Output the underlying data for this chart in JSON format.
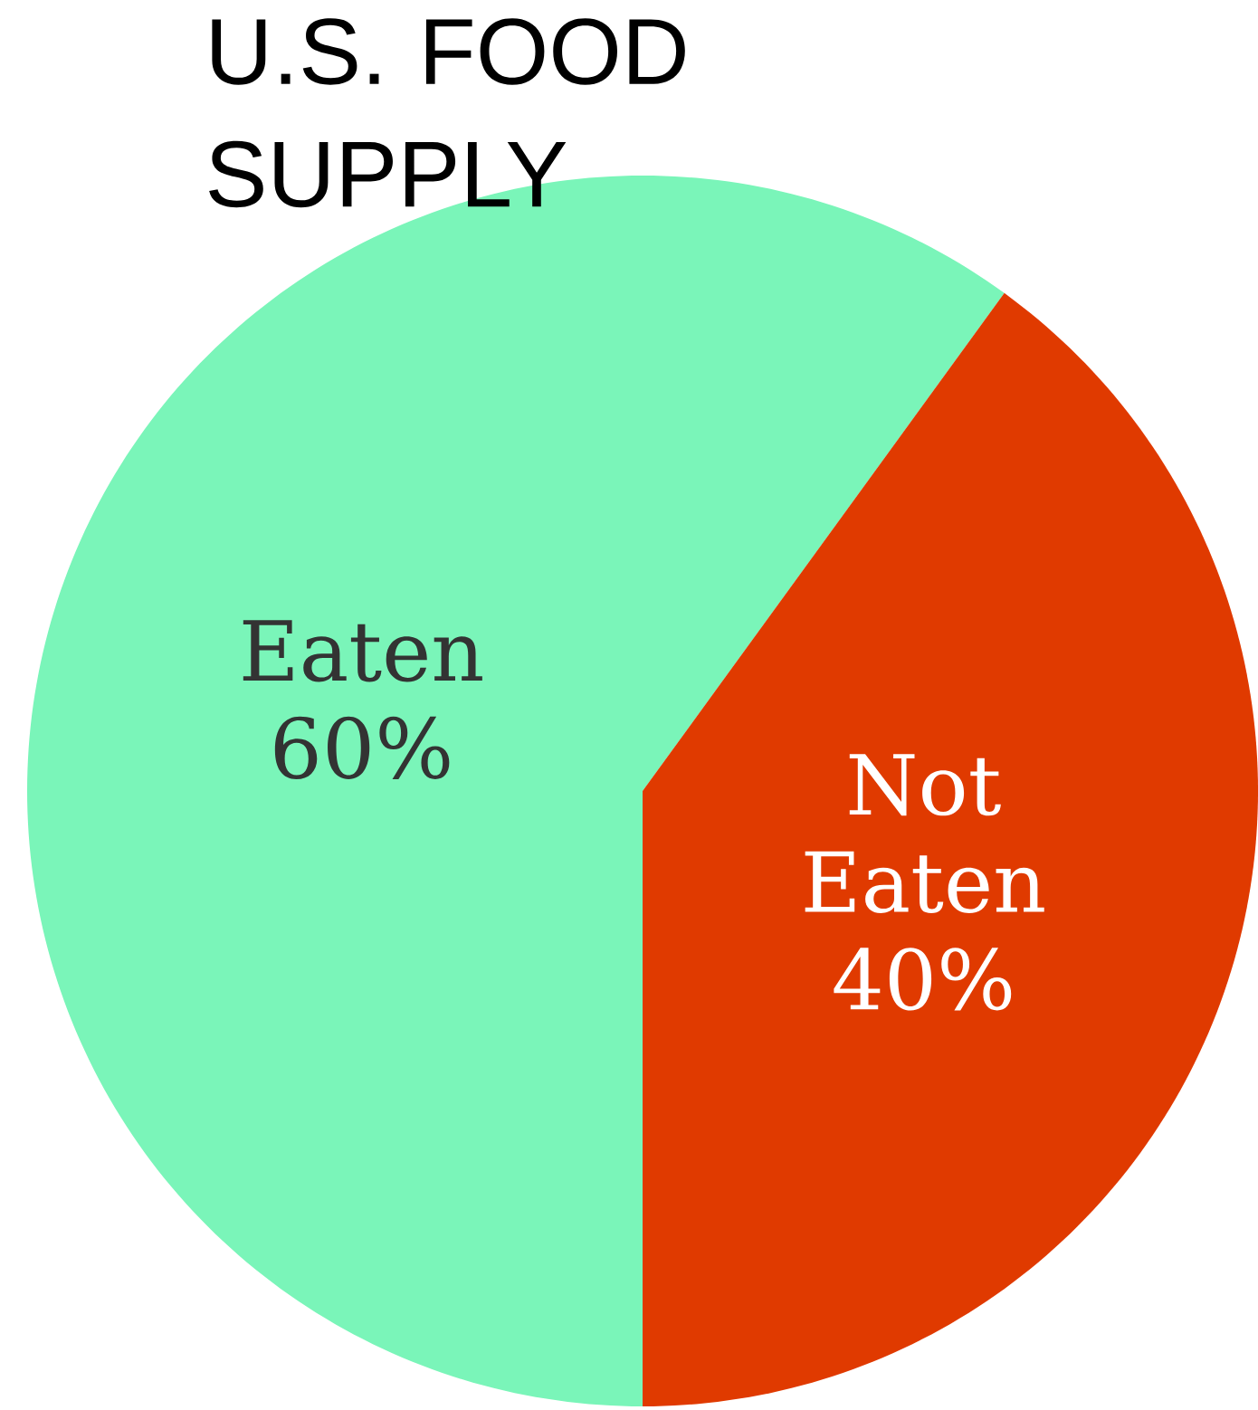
{
  "chart_data": {
    "type": "pie",
    "title": "U.S. FOOD SUPPLY",
    "categories": [
      "Eaten",
      "Not Eaten"
    ],
    "values": [
      60,
      40
    ],
    "value_labels": [
      "60%",
      "40%"
    ],
    "colors": [
      "#7af5b9",
      "#e03a00"
    ]
  }
}
